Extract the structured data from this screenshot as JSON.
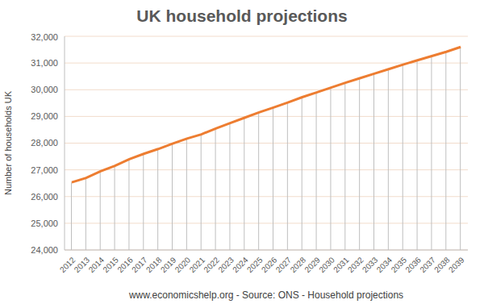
{
  "chart_data": {
    "type": "line",
    "title": "UK household projections",
    "xlabel": "www.economicshelp.org - Source: ONS - Household projections",
    "ylabel": "Number of households UK",
    "categories": [
      "2012",
      "2013",
      "2014",
      "2015",
      "2016",
      "2017",
      "2018",
      "2019",
      "2020",
      "2021",
      "2022",
      "2023",
      "2024",
      "2025",
      "2026",
      "2027",
      "2028",
      "2029",
      "2030",
      "2031",
      "2032",
      "2033",
      "2034",
      "2035",
      "2036",
      "2037",
      "2038",
      "2039"
    ],
    "values": [
      26530,
      26700,
      26950,
      27150,
      27400,
      27600,
      27780,
      27980,
      28170,
      28330,
      28550,
      28750,
      28950,
      29150,
      29330,
      29520,
      29720,
      29900,
      30080,
      30260,
      30430,
      30600,
      30770,
      30940,
      31100,
      31260,
      31420,
      31600
    ],
    "color": "#ed7d31",
    "ylim": [
      24000,
      32000
    ],
    "yticks": [
      {
        "value": 24000,
        "label": "24,000"
      },
      {
        "value": 25000,
        "label": "25,000"
      },
      {
        "value": 26000,
        "label": "26,000"
      },
      {
        "value": 27000,
        "label": "27,000"
      },
      {
        "value": 28000,
        "label": "28,000"
      },
      {
        "value": 29000,
        "label": "29,000"
      },
      {
        "value": 30000,
        "label": "30,000"
      },
      {
        "value": 31000,
        "label": "31,000"
      },
      {
        "value": 32000,
        "label": "32,000"
      }
    ],
    "grid": true
  }
}
